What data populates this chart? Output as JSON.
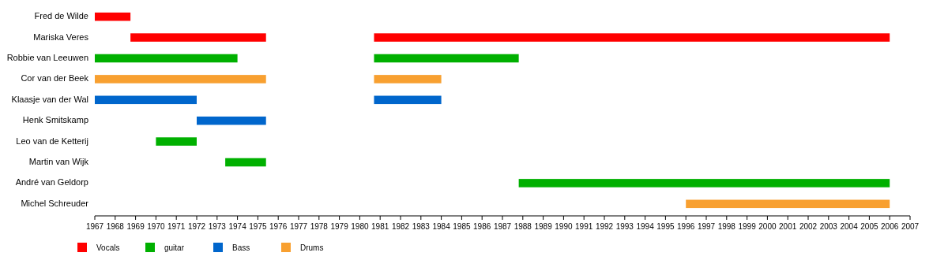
{
  "chart_data": {
    "type": "bar",
    "orientation": "horizontal",
    "categories": [
      "Fred de Wilde",
      "Mariska Veres",
      "Robbie van Leeuwen",
      "Cor van der Beek",
      "Klaasje van der Wal",
      "Henk Smitskamp",
      "Leo van de Ketterij",
      "Martin van Wijk",
      "André van Geldorp",
      "Michel Schreuder"
    ],
    "xlim": [
      1967,
      2007
    ],
    "xticks": [
      1967,
      1968,
      1969,
      1970,
      1971,
      1972,
      1973,
      1974,
      1975,
      1976,
      1977,
      1978,
      1979,
      1980,
      1981,
      1982,
      1983,
      1984,
      1985,
      1986,
      1987,
      1988,
      1989,
      1990,
      1991,
      1992,
      1993,
      1994,
      1995,
      1996,
      1997,
      1998,
      1999,
      2000,
      2001,
      2002,
      2003,
      2004,
      2005,
      2006,
      2007
    ],
    "legend": "bottom left",
    "grid": false,
    "series": [
      {
        "name": "Vocals",
        "color": "#ff0000",
        "base": [
          1967,
          1968.75,
          null,
          null,
          null,
          null,
          null,
          null,
          null,
          null
        ],
        "values": [
          1.75,
          6.65,
          null,
          null,
          null,
          null,
          null,
          null,
          null,
          null
        ]
      },
      {
        "name": "guitar",
        "color": "#00b000",
        "base": [
          null,
          null,
          1967,
          null,
          null,
          null,
          1970,
          1973.4,
          1987.8,
          null
        ],
        "values": [
          null,
          null,
          7,
          null,
          null,
          null,
          2,
          2,
          18.2,
          null
        ]
      },
      {
        "name": "Bass",
        "color": "#0066cc",
        "base": [
          null,
          null,
          null,
          null,
          1967,
          1972,
          null,
          null,
          null,
          null
        ],
        "values": [
          null,
          null,
          null,
          null,
          5,
          3.4,
          null,
          null,
          null,
          null
        ]
      },
      {
        "name": "Drums",
        "color": "#f8a030",
        "base": [
          null,
          null,
          null,
          1967,
          null,
          null,
          null,
          null,
          null,
          1996
        ],
        "values": [
          null,
          null,
          null,
          8.4,
          null,
          null,
          null,
          null,
          null,
          10
        ]
      },
      {
        "color": "#ff0000",
        "base": [
          null,
          1980.7,
          null,
          null,
          null,
          null,
          null,
          null,
          null,
          null
        ],
        "values": [
          null,
          25.3,
          null,
          null,
          null,
          null,
          null,
          null,
          null,
          null
        ]
      },
      {
        "color": "#00b000",
        "base": [
          null,
          null,
          1980.7,
          null,
          null,
          null,
          null,
          null,
          null,
          null
        ],
        "values": [
          null,
          null,
          7.1,
          null,
          null,
          null,
          null,
          null,
          null,
          null
        ]
      },
      {
        "color": "#f8a030",
        "base": [
          null,
          null,
          null,
          1980.7,
          null,
          null,
          null,
          null,
          null,
          null
        ],
        "values": [
          null,
          null,
          null,
          3.3,
          null,
          null,
          null,
          null,
          null,
          null
        ]
      },
      {
        "color": "#0066cc",
        "base": [
          null,
          null,
          null,
          null,
          1980.7,
          null,
          null,
          null,
          null,
          null
        ],
        "values": [
          null,
          null,
          null,
          null,
          3.3,
          null,
          null,
          null,
          null,
          null
        ]
      }
    ]
  }
}
